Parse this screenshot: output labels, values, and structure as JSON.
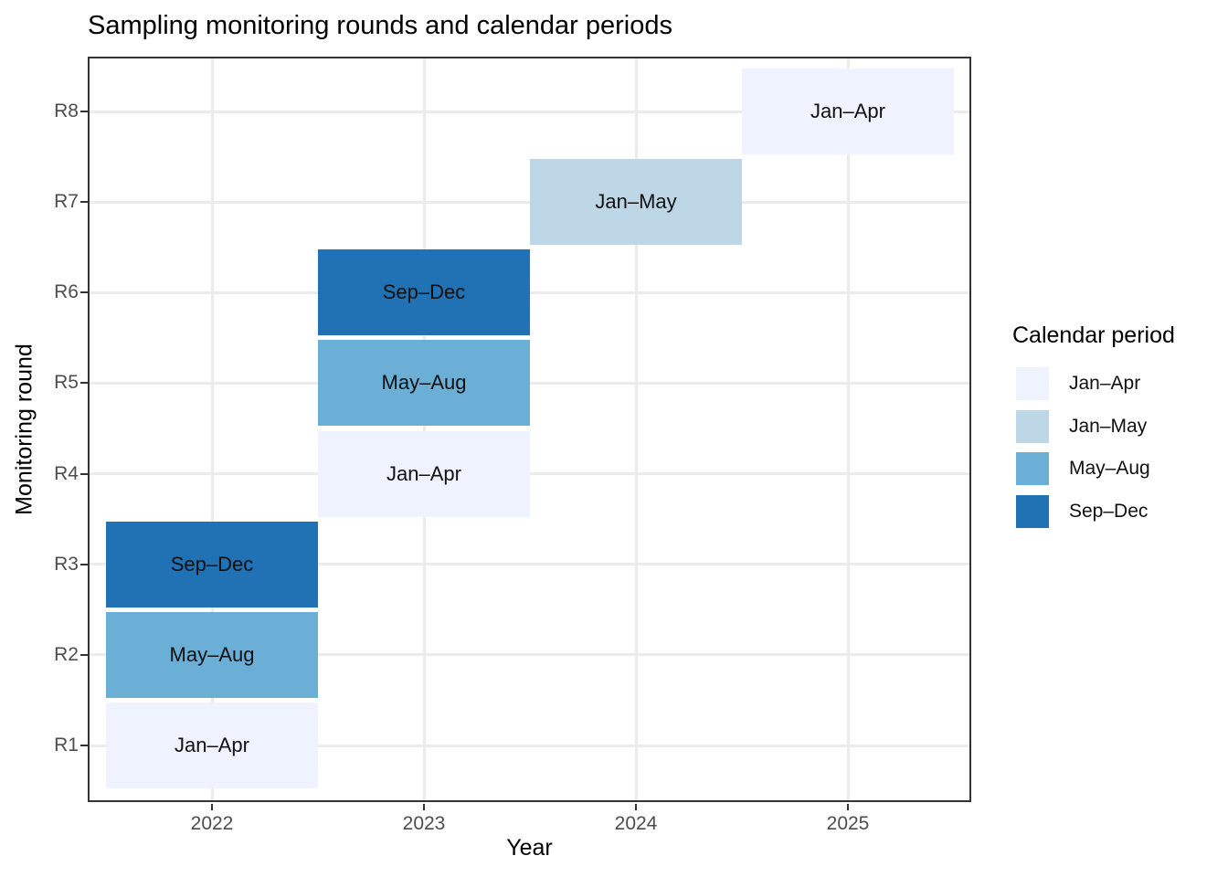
{
  "chart_data": {
    "type": "heatmap",
    "title": "Sampling monitoring rounds and calendar periods",
    "xlabel": "Year",
    "ylabel": "Monitoring round",
    "x_ticks": [
      "2022",
      "2023",
      "2024",
      "2025"
    ],
    "x_range": [
      2021.5,
      2025.5
    ],
    "y_categories": [
      "R1",
      "R2",
      "R3",
      "R4",
      "R5",
      "R6",
      "R7",
      "R8"
    ],
    "grid": "major-only",
    "legend": {
      "title": "Calendar period",
      "position": "right",
      "entries": [
        {
          "label": "Jan–Apr",
          "color": "#EFF3FF"
        },
        {
          "label": "Jan–May",
          "color": "#BDD7E7"
        },
        {
          "label": "May–Aug",
          "color": "#6BAED6"
        },
        {
          "label": "Sep–Dec",
          "color": "#2171B5"
        }
      ]
    },
    "tiles": [
      {
        "round": "R1",
        "year": 2022,
        "period": "Jan–Apr"
      },
      {
        "round": "R2",
        "year": 2022,
        "period": "May–Aug"
      },
      {
        "round": "R3",
        "year": 2022,
        "period": "Sep–Dec"
      },
      {
        "round": "R4",
        "year": 2023,
        "period": "Jan–Apr"
      },
      {
        "round": "R5",
        "year": 2023,
        "period": "May–Aug"
      },
      {
        "round": "R6",
        "year": 2023,
        "period": "Sep–Dec"
      },
      {
        "round": "R7",
        "year": 2024,
        "period": "Jan–May"
      },
      {
        "round": "R8",
        "year": 2025,
        "period": "Jan–Apr"
      }
    ],
    "colors": {
      "panel_border": "#333333",
      "gridline": "#EBEBEB",
      "axis_text": "#4D4D4D",
      "tick_mark": "#333333"
    }
  }
}
